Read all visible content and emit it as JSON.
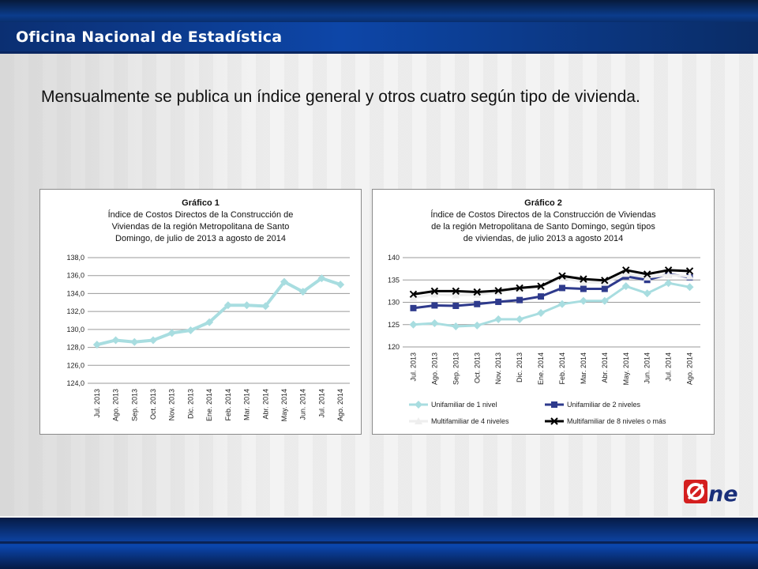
{
  "header": {
    "title": "Oficina Nacional de Estadística"
  },
  "intro_text": "Mensualmente se publica un índice general y otros cuatro según tipo de vivienda.",
  "logo": {
    "text": "One",
    "icon": "one-logo"
  },
  "colors": {
    "accent": "#0d46a8",
    "series1": "#a8dde0",
    "series2": "#2e3a8c",
    "series3": "#eeeeee",
    "series4": "#000000"
  },
  "chart_data": [
    {
      "type": "line",
      "caption_title": "Gráfico 1",
      "caption_lines": [
        "Índice de Costos Directos de la Construcción de",
        "Viviendas de la región Metropolitana  de Santo",
        "Domingo, de julio de  2013  a agosto  de  2014"
      ],
      "categories": [
        "Jul. 2013",
        "Ago. 2013",
        "Sep. 2013",
        "Oct. 2013",
        "Nov. 2013",
        "Dic. 2013",
        "Ene. 2014",
        "Feb. 2014",
        "Mar. 2014",
        "Abr. 2014",
        "May. 2014",
        "Jun. 2014",
        "Jul. 2014",
        "Ago. 2014"
      ],
      "series": [
        {
          "values": [
            128.3,
            128.8,
            128.6,
            128.8,
            129.6,
            129.9,
            130.8,
            132.7,
            132.7,
            132.6,
            135.3,
            134.2,
            135.7,
            135.0
          ]
        }
      ],
      "ylim": [
        124,
        138
      ],
      "yticks": [
        "124,0",
        "126,0",
        "128,0",
        "130,0",
        "132,0",
        "134,0",
        "136,0",
        "138,0"
      ],
      "grid": true
    },
    {
      "type": "line",
      "caption_title": "Gráfico 2",
      "caption_lines": [
        "Índice de Costos Directos de la Construcción de Viviendas",
        "de la región Metropolitana de Santo Domingo, según tipos",
        "de viviendas, de julio 2013 a agosto 2014"
      ],
      "categories": [
        "Jul. 2013",
        "Ago. 2013",
        "Sep. 2013",
        "Oct. 2013",
        "Nov. 2013",
        "Dic. 2013",
        "Ene. 2014",
        "Feb. 2014",
        "Mar. 2014",
        "Abr. 2014",
        "May. 2014",
        "Jun. 2014",
        "Jul. 2014",
        "Ago. 2014"
      ],
      "series": [
        {
          "name": "Unifamiliar de 1 nivel",
          "values": [
            125.0,
            125.3,
            124.6,
            124.8,
            126.2,
            126.2,
            127.6,
            129.6,
            130.3,
            130.3,
            133.6,
            132.0,
            134.3,
            133.4
          ]
        },
        {
          "name": "Unifamiliar de 2 niveles",
          "values": [
            128.7,
            129.3,
            129.2,
            129.6,
            130.1,
            130.5,
            131.3,
            133.2,
            133.0,
            133.0,
            135.8,
            135.0,
            136.3,
            135.6
          ]
        },
        {
          "name": "Multifamiliar de 4 niveles",
          "values": [
            131.0,
            131.8,
            131.6,
            131.7,
            132.3,
            133.0,
            133.4,
            135.5,
            134.5,
            134.4,
            136.4,
            135.6,
            136.1,
            135.8
          ]
        },
        {
          "name": "Multifamiliar de 8 niveles o más",
          "values": [
            131.8,
            132.5,
            132.5,
            132.3,
            132.6,
            133.2,
            133.6,
            135.9,
            135.2,
            134.9,
            137.2,
            136.3,
            137.2,
            137.0
          ]
        }
      ],
      "ylim": [
        120,
        140
      ],
      "yticks": [
        "120",
        "125",
        "130",
        "135",
        "140"
      ],
      "legend": "bottom",
      "grid": true
    }
  ]
}
